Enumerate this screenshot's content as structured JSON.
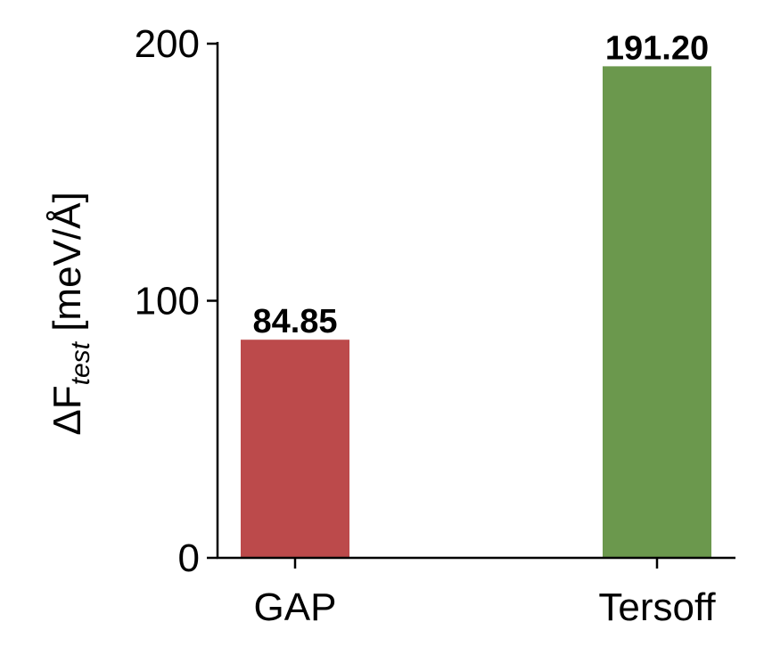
{
  "chart_data": {
    "type": "bar",
    "categories": [
      "GAP",
      "Tersoff"
    ],
    "values": [
      84.85,
      191.2
    ],
    "value_labels": [
      "84.85",
      "191.20"
    ],
    "colors": [
      "#bc4a4b",
      "#6b984d"
    ],
    "title": "",
    "xlabel": "",
    "ylabel": {
      "prefix": "ΔF",
      "subscript": "test",
      "unit": " [meV/Å]"
    },
    "ylim": [
      0,
      200
    ],
    "yticks": [
      0,
      100,
      200
    ],
    "ytick_labels": [
      "0",
      "100",
      "200"
    ],
    "grid": false,
    "legend": "none"
  }
}
